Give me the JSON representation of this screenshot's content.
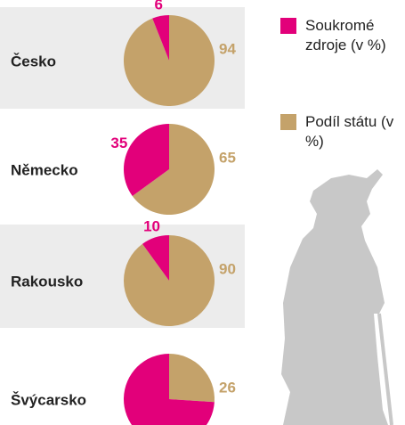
{
  "chart_data": {
    "type": "pie",
    "categories": [
      "Česko",
      "Německo",
      "Rakousko",
      "Švýcarsko"
    ],
    "series": [
      {
        "name": "Soukromé zdroje (v %)",
        "color": "#e2007a",
        "values": [
          6,
          35,
          10,
          74
        ],
        "value_labels": [
          "6",
          "35",
          "10",
          null
        ]
      },
      {
        "name": "Podíl státu (v %)",
        "color": "#c4a26a",
        "values": [
          94,
          65,
          90,
          26
        ]
      }
    ]
  }
}
